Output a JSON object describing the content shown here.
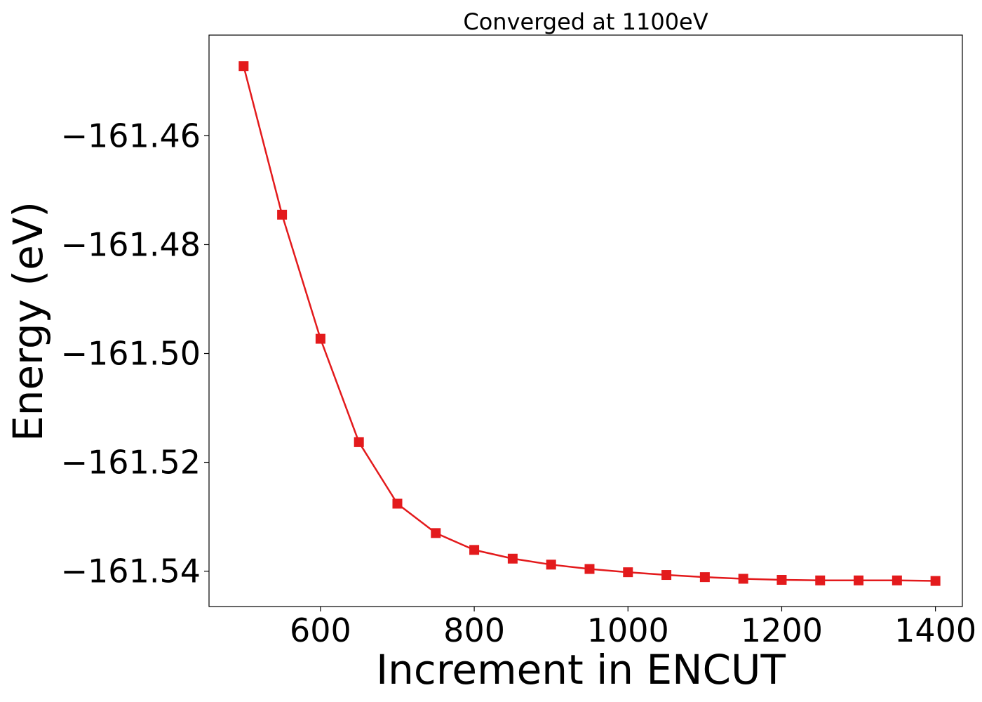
{
  "chart_data": {
    "type": "line",
    "title": "Converged at 1100eV",
    "xlabel": "Increment in ENCUT",
    "ylabel": "Energy (eV)",
    "xlim": [
      455,
      1435
    ],
    "ylim": [
      -161.5465,
      -161.4415
    ],
    "xticks": [
      600,
      800,
      1000,
      1200,
      1400
    ],
    "xtick_labels": [
      "600",
      "800",
      "1000",
      "1200",
      "1400"
    ],
    "yticks": [
      -161.46,
      -161.48,
      -161.5,
      -161.52,
      -161.54
    ],
    "ytick_labels": [
      "−161.46",
      "−161.48",
      "−161.50",
      "−161.52",
      "−161.54"
    ],
    "grid": false,
    "legend": "none",
    "series": [
      {
        "color": "#e31a1c",
        "marker": "square",
        "x": [
          500,
          550,
          600,
          650,
          700,
          750,
          800,
          850,
          900,
          950,
          1000,
          1050,
          1100,
          1150,
          1200,
          1250,
          1300,
          1350,
          1400
        ],
        "y": [
          -161.4472,
          -161.4745,
          -161.4973,
          -161.5163,
          -161.5276,
          -161.533,
          -161.5361,
          -161.5377,
          -161.5388,
          -161.5396,
          -161.5402,
          -161.5407,
          -161.5411,
          -161.5414,
          -161.5416,
          -161.5417,
          -161.5417,
          -161.5417,
          -161.5418
        ]
      }
    ]
  }
}
